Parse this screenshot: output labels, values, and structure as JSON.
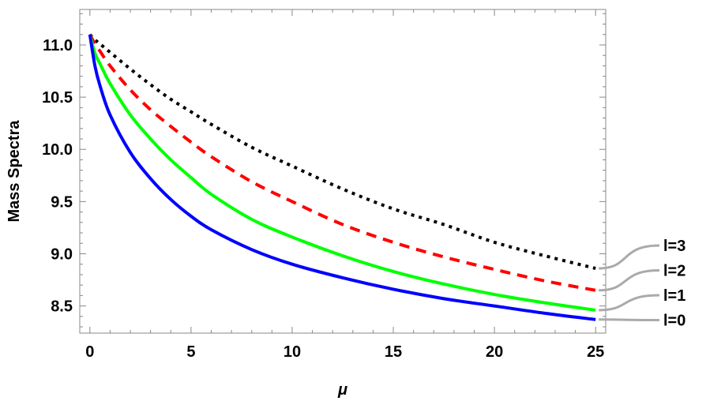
{
  "chart_data": {
    "type": "line",
    "xlabel": "μ",
    "ylabel": "Mass Spectra",
    "xlim": [
      -0.5,
      25.5
    ],
    "ylim": [
      8.24,
      11.34
    ],
    "x_ticks": [
      0,
      5,
      10,
      15,
      20,
      25
    ],
    "x_tick_labels": [
      "0",
      "5",
      "10",
      "15",
      "20",
      "25"
    ],
    "y_ticks": [
      8.5,
      9.0,
      9.5,
      10.0,
      10.5,
      11.0
    ],
    "y_tick_labels": [
      "8.5",
      "9.0",
      "9.5",
      "10.0",
      "10.5",
      "11.0"
    ],
    "grid": false,
    "legend_placement": "right of plot, labels at curve ends",
    "x": [
      0,
      0.25,
      0.5,
      1,
      2,
      3,
      4,
      5,
      6,
      8,
      10,
      12.5,
      15,
      17.5,
      20,
      22.5,
      25
    ],
    "series": [
      {
        "name": "l=3",
        "color": "#000000",
        "dash": "dotted",
        "values": [
          11.1,
          11.05,
          11.01,
          10.93,
          10.77,
          10.62,
          10.48,
          10.36,
          10.24,
          10.02,
          9.84,
          9.62,
          9.43,
          9.28,
          9.11,
          8.98,
          8.86
        ]
      },
      {
        "name": "l=2",
        "color": "#ff0000",
        "dash": "dashed",
        "values": [
          11.1,
          11.01,
          10.94,
          10.8,
          10.57,
          10.38,
          10.22,
          10.07,
          9.93,
          9.69,
          9.5,
          9.28,
          9.11,
          8.97,
          8.85,
          8.74,
          8.65
        ]
      },
      {
        "name": "l=1",
        "color": "#00ff00",
        "dash": "solid",
        "values": [
          11.1,
          10.92,
          10.82,
          10.63,
          10.33,
          10.1,
          9.9,
          9.73,
          9.57,
          9.33,
          9.16,
          8.98,
          8.83,
          8.71,
          8.61,
          8.53,
          8.46
        ]
      },
      {
        "name": "l=0",
        "color": "#0000ff",
        "dash": "solid",
        "values": [
          11.1,
          10.8,
          10.61,
          10.33,
          9.97,
          9.72,
          9.52,
          9.36,
          9.23,
          9.04,
          8.9,
          8.77,
          8.66,
          8.57,
          8.5,
          8.43,
          8.37
        ]
      }
    ],
    "legend": {
      "label_color": "#000000",
      "connector_color": "#aaaaaa",
      "items": [
        {
          "label": "l=3",
          "anchor_series": 0
        },
        {
          "label": "l=2",
          "anchor_series": 1
        },
        {
          "label": "l=1",
          "anchor_series": 2
        },
        {
          "label": "l=0",
          "anchor_series": 3
        }
      ]
    }
  }
}
